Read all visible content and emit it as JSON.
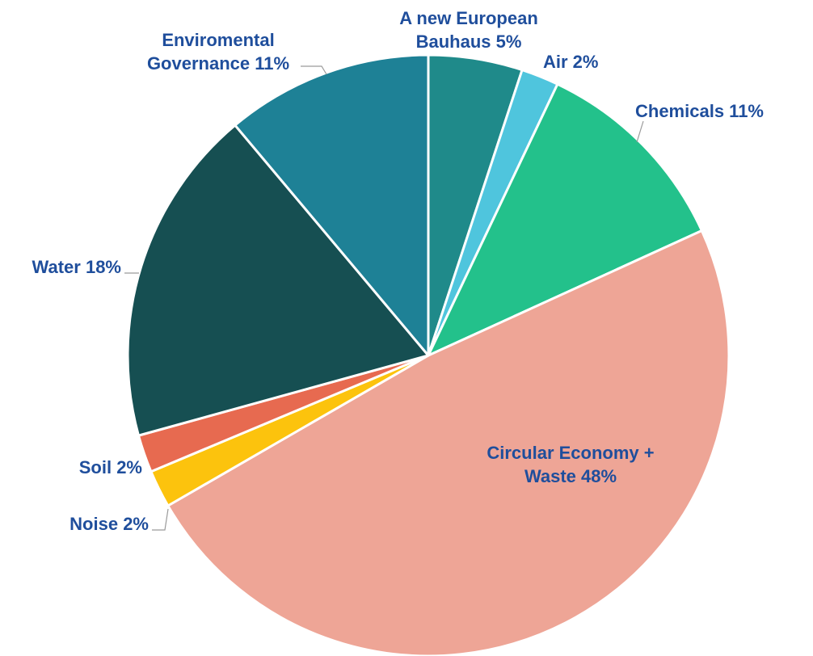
{
  "chart_data": {
    "type": "pie",
    "title": "",
    "start_angle_deg": 0,
    "direction": "clockwise",
    "slices": [
      {
        "label": "A new European Bauhaus",
        "display": [
          "A new European",
          "Bauhaus 5%"
        ],
        "value": 5,
        "color": "#1f8a8a"
      },
      {
        "label": "Air",
        "display": [
          "Air 2%"
        ],
        "value": 2,
        "color": "#4fc5dd"
      },
      {
        "label": "Chemicals",
        "display": [
          "Chemicals 11%"
        ],
        "value": 11,
        "color": "#23c18b"
      },
      {
        "label": "Circular Economy + Waste",
        "display": [
          "Circular Economy +",
          "Waste 48%"
        ],
        "value": 48,
        "color": "#eea596"
      },
      {
        "label": "Noise",
        "display": [
          "Noise 2%"
        ],
        "value": 2,
        "color": "#fcc30d"
      },
      {
        "label": "Soil",
        "display": [
          "Soil 2%"
        ],
        "value": 2,
        "color": "#e76a50"
      },
      {
        "label": "Water",
        "display": [
          "Water 18%"
        ],
        "value": 18,
        "color": "#164f52"
      },
      {
        "label": "Enviromental Governance",
        "display": [
          "Enviromental",
          "Governance 11%"
        ],
        "value": 11,
        "color": "#1e8196"
      }
    ],
    "label_color": "#1f4e9c",
    "legend": "none"
  }
}
